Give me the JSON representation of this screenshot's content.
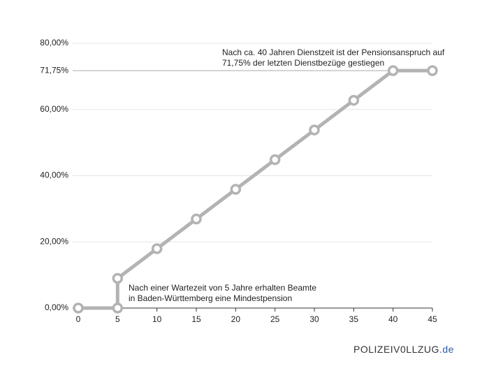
{
  "chart_data": {
    "type": "line",
    "x": [
      0,
      5,
      5,
      10,
      15,
      20,
      25,
      30,
      35,
      40,
      45
    ],
    "series": [
      {
        "name": "Pensionsanspruch",
        "color": "#b3b3b3",
        "values": [
          0,
          0,
          8.97,
          17.94,
          26.91,
          35.88,
          44.84,
          53.81,
          62.78,
          71.75,
          71.75
        ]
      }
    ],
    "xlim": [
      0,
      45
    ],
    "xticks": [
      0,
      5,
      10,
      15,
      20,
      25,
      30,
      35,
      40,
      45
    ],
    "ylim": [
      0,
      80
    ],
    "yticks": [
      {
        "value": 0,
        "label": "0,00%"
      },
      {
        "value": 20,
        "label": "20,00%"
      },
      {
        "value": 40,
        "label": "40,00%"
      },
      {
        "value": 60,
        "label": "60,00%"
      },
      {
        "value": 71.75,
        "label": "71,75%"
      },
      {
        "value": 80,
        "label": "80,00%"
      }
    ],
    "grid": true,
    "annotations": [
      {
        "lines": [
          "Nach ca. 40 Jahren Dienstzeit ist der Pensionsanspruch auf",
          "71,75% der letzten Dienstbezüge gestiegen"
        ]
      },
      {
        "lines": [
          "Nach einer Wartezeit von 5 Jahre erhalten Beamte",
          "in Baden-Württemberg eine Mindestpension"
        ]
      }
    ],
    "brand": {
      "name": "POLIZEIV0LLZUG",
      "suffix": ".de"
    }
  }
}
